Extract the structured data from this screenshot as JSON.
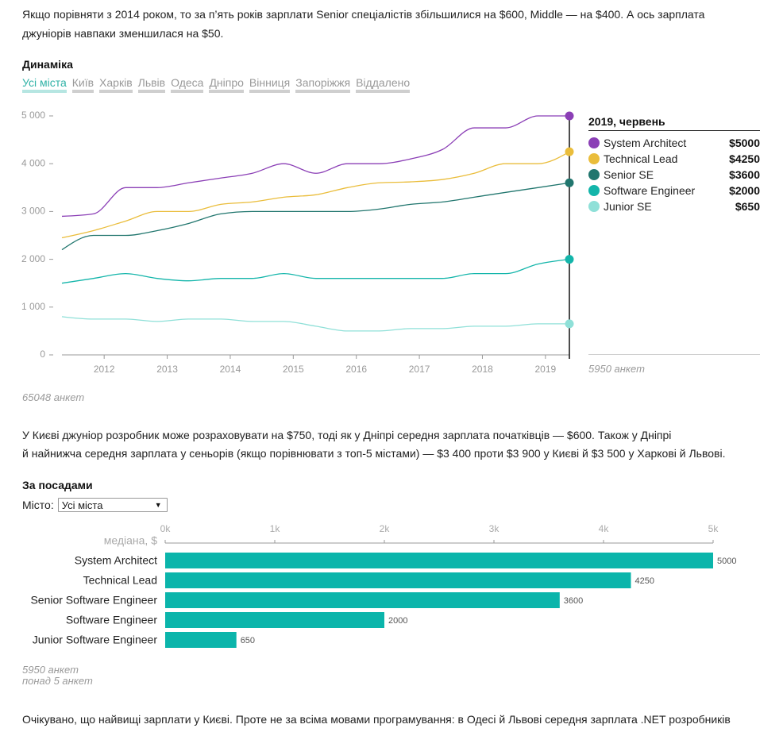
{
  "intro": {
    "lines": [
      "Якщо порівняти з 2014 роком, то за п’ять років зарплати Senior спеціалістів збільшилися на $600, Middle — на $400. А ось зарплата",
      "джуніорів навпаки зменшилася на $50."
    ]
  },
  "dynamics": {
    "title": "Динаміка",
    "tabs": [
      {
        "label": "Усі міста",
        "active": true
      },
      {
        "label": "Київ",
        "active": false
      },
      {
        "label": "Харків",
        "active": false
      },
      {
        "label": "Львів",
        "active": false
      },
      {
        "label": "Одеса",
        "active": false
      },
      {
        "label": "Дніпро",
        "active": false
      },
      {
        "label": "Вінниця",
        "active": false
      },
      {
        "label": "Запоріжжя",
        "active": false
      },
      {
        "label": "Віддалено",
        "active": false
      }
    ],
    "respondents": "65048 анкет",
    "legend": {
      "title": "2019, червень",
      "items": [
        {
          "name": "System Architect",
          "value": "$5000",
          "color": "#8b3fb6"
        },
        {
          "name": "Technical Lead",
          "value": "$4250",
          "color": "#eabd3b"
        },
        {
          "name": "Senior SE",
          "value": "$3600",
          "color": "#21766e"
        },
        {
          "name": "Software Engineer",
          "value": "$2000",
          "color": "#13b5aa"
        },
        {
          "name": "Junior SE",
          "value": "$650",
          "color": "#8fe0d8"
        }
      ],
      "respondents": "5950 анкет"
    }
  },
  "cities_paragraph": {
    "lines": [
      "У Києві джуніор розробник може розраховувати на $750, тоді як у Дніпрі середня зарплата початківців — $600. Також у Дніпрі",
      "й найнижча середня зарплата у сеньорів (якщо порівнювати з топ-5 містами) — $3 400 проти $3 900 у Києві й $3 500 у Харкові й Львові."
    ]
  },
  "positions": {
    "title": "За посадами",
    "city_label": "Місто:",
    "city_select": {
      "value": "Усі міста",
      "caret": "▼"
    },
    "footnotes": [
      "5950 анкет",
      "понад 5 анкет"
    ]
  },
  "languages_paragraph": {
    "lines": [
      "Очікувано, що найвищі зарплати у Києві. Проте не за всіма мовами програмування: в Одесі й Львові середня зарплата .NET розробників"
    ]
  },
  "chart_data": [
    {
      "type": "line",
      "title": "Динаміка",
      "xlabel": "",
      "ylabel": "",
      "x": [
        2011.33,
        2011.83,
        2012.34,
        2012.84,
        2013.34,
        2013.85,
        2014.35,
        2014.85,
        2015.36,
        2015.86,
        2016.36,
        2016.86,
        2017.37,
        2017.87,
        2018.37,
        2018.88,
        2019.38
      ],
      "xlim": [
        2011.33,
        2019.38
      ],
      "xticks": [
        2012,
        2013,
        2014,
        2015,
        2016,
        2017,
        2018,
        2019
      ],
      "xtick_labels": [
        "2012",
        "2013",
        "2014",
        "2015",
        "2016",
        "2017",
        "2018",
        "2019"
      ],
      "ylim": [
        0,
        5000
      ],
      "yticks": [
        0,
        1000,
        2000,
        3000,
        4000,
        5000
      ],
      "ytick_labels": [
        "0",
        "1 000",
        "2 000",
        "3 000",
        "4 000",
        "5 000"
      ],
      "grid": false,
      "legend": "right",
      "highlight": {
        "x": 2019.38,
        "label": "2019, червень"
      },
      "series": [
        {
          "name": "System Architect",
          "color": "#8b3fb6",
          "values": [
            2900,
            2950,
            3500,
            3500,
            3600,
            3700,
            3800,
            4000,
            3800,
            4000,
            4000,
            4100,
            4300,
            4750,
            4750,
            5000,
            5000
          ]
        },
        {
          "name": "Technical Lead",
          "color": "#eabd3b",
          "values": [
            2450,
            2600,
            2800,
            3000,
            3000,
            3150,
            3200,
            3300,
            3350,
            3500,
            3600,
            3620,
            3670,
            3800,
            4000,
            4000,
            4250
          ]
        },
        {
          "name": "Senior SE",
          "color": "#21766e",
          "values": [
            2200,
            2500,
            2500,
            2600,
            2750,
            2950,
            3000,
            3000,
            3000,
            3000,
            3050,
            3150,
            3200,
            3300,
            3400,
            3500,
            3600
          ]
        },
        {
          "name": "Software Engineer",
          "color": "#13b5aa",
          "values": [
            1500,
            1600,
            1700,
            1600,
            1550,
            1600,
            1600,
            1700,
            1600,
            1600,
            1600,
            1600,
            1600,
            1700,
            1700,
            1900,
            2000
          ]
        },
        {
          "name": "Junior SE",
          "color": "#8fe0d8",
          "values": [
            800,
            750,
            750,
            700,
            750,
            750,
            700,
            700,
            600,
            500,
            500,
            550,
            550,
            600,
            600,
            650,
            650
          ]
        }
      ]
    },
    {
      "type": "bar",
      "orientation": "horizontal",
      "title": "За посадами",
      "categories": [
        "System Architect",
        "Technical Lead",
        "Senior Software Engineer",
        "Software Engineer",
        "Junior Software Engineer"
      ],
      "values": [
        5000,
        4250,
        3600,
        2000,
        650
      ],
      "value_labels": [
        "5000",
        "4250",
        "3600",
        "2000",
        "650"
      ],
      "xlabel": "медіана, $",
      "ylabel": "",
      "xlim": [
        0,
        5000
      ],
      "xticks": [
        0,
        1000,
        2000,
        3000,
        4000,
        5000
      ],
      "xtick_labels": [
        "0k",
        "1k",
        "2k",
        "3k",
        "4k",
        "5k"
      ],
      "color": "#0bb5ab",
      "grid": false
    }
  ]
}
